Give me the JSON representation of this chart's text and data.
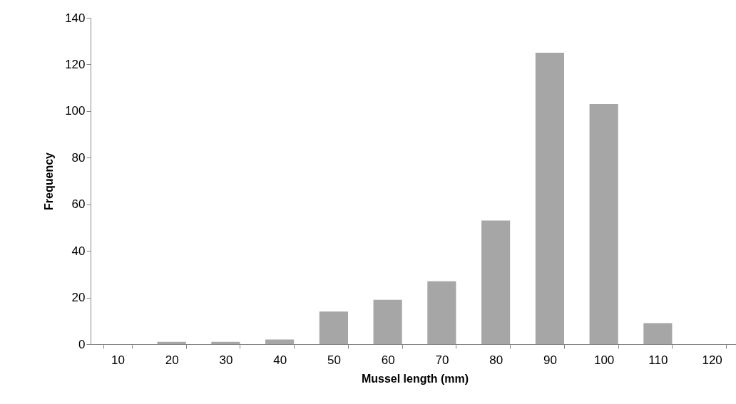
{
  "chart_data": {
    "type": "bar",
    "xlabel": "Mussel length (mm)",
    "ylabel": "Frequency",
    "categories": [
      "10",
      "20",
      "30",
      "40",
      "50",
      "60",
      "70",
      "80",
      "90",
      "100",
      "110",
      "120"
    ],
    "values": [
      0,
      1,
      1,
      2,
      14,
      19,
      27,
      53,
      125,
      103,
      9,
      0
    ],
    "color": "#a6a6a6",
    "ylim": [
      0,
      140
    ],
    "yticks": [
      0,
      20,
      40,
      60,
      80,
      100,
      120,
      140
    ],
    "grid": false
  }
}
